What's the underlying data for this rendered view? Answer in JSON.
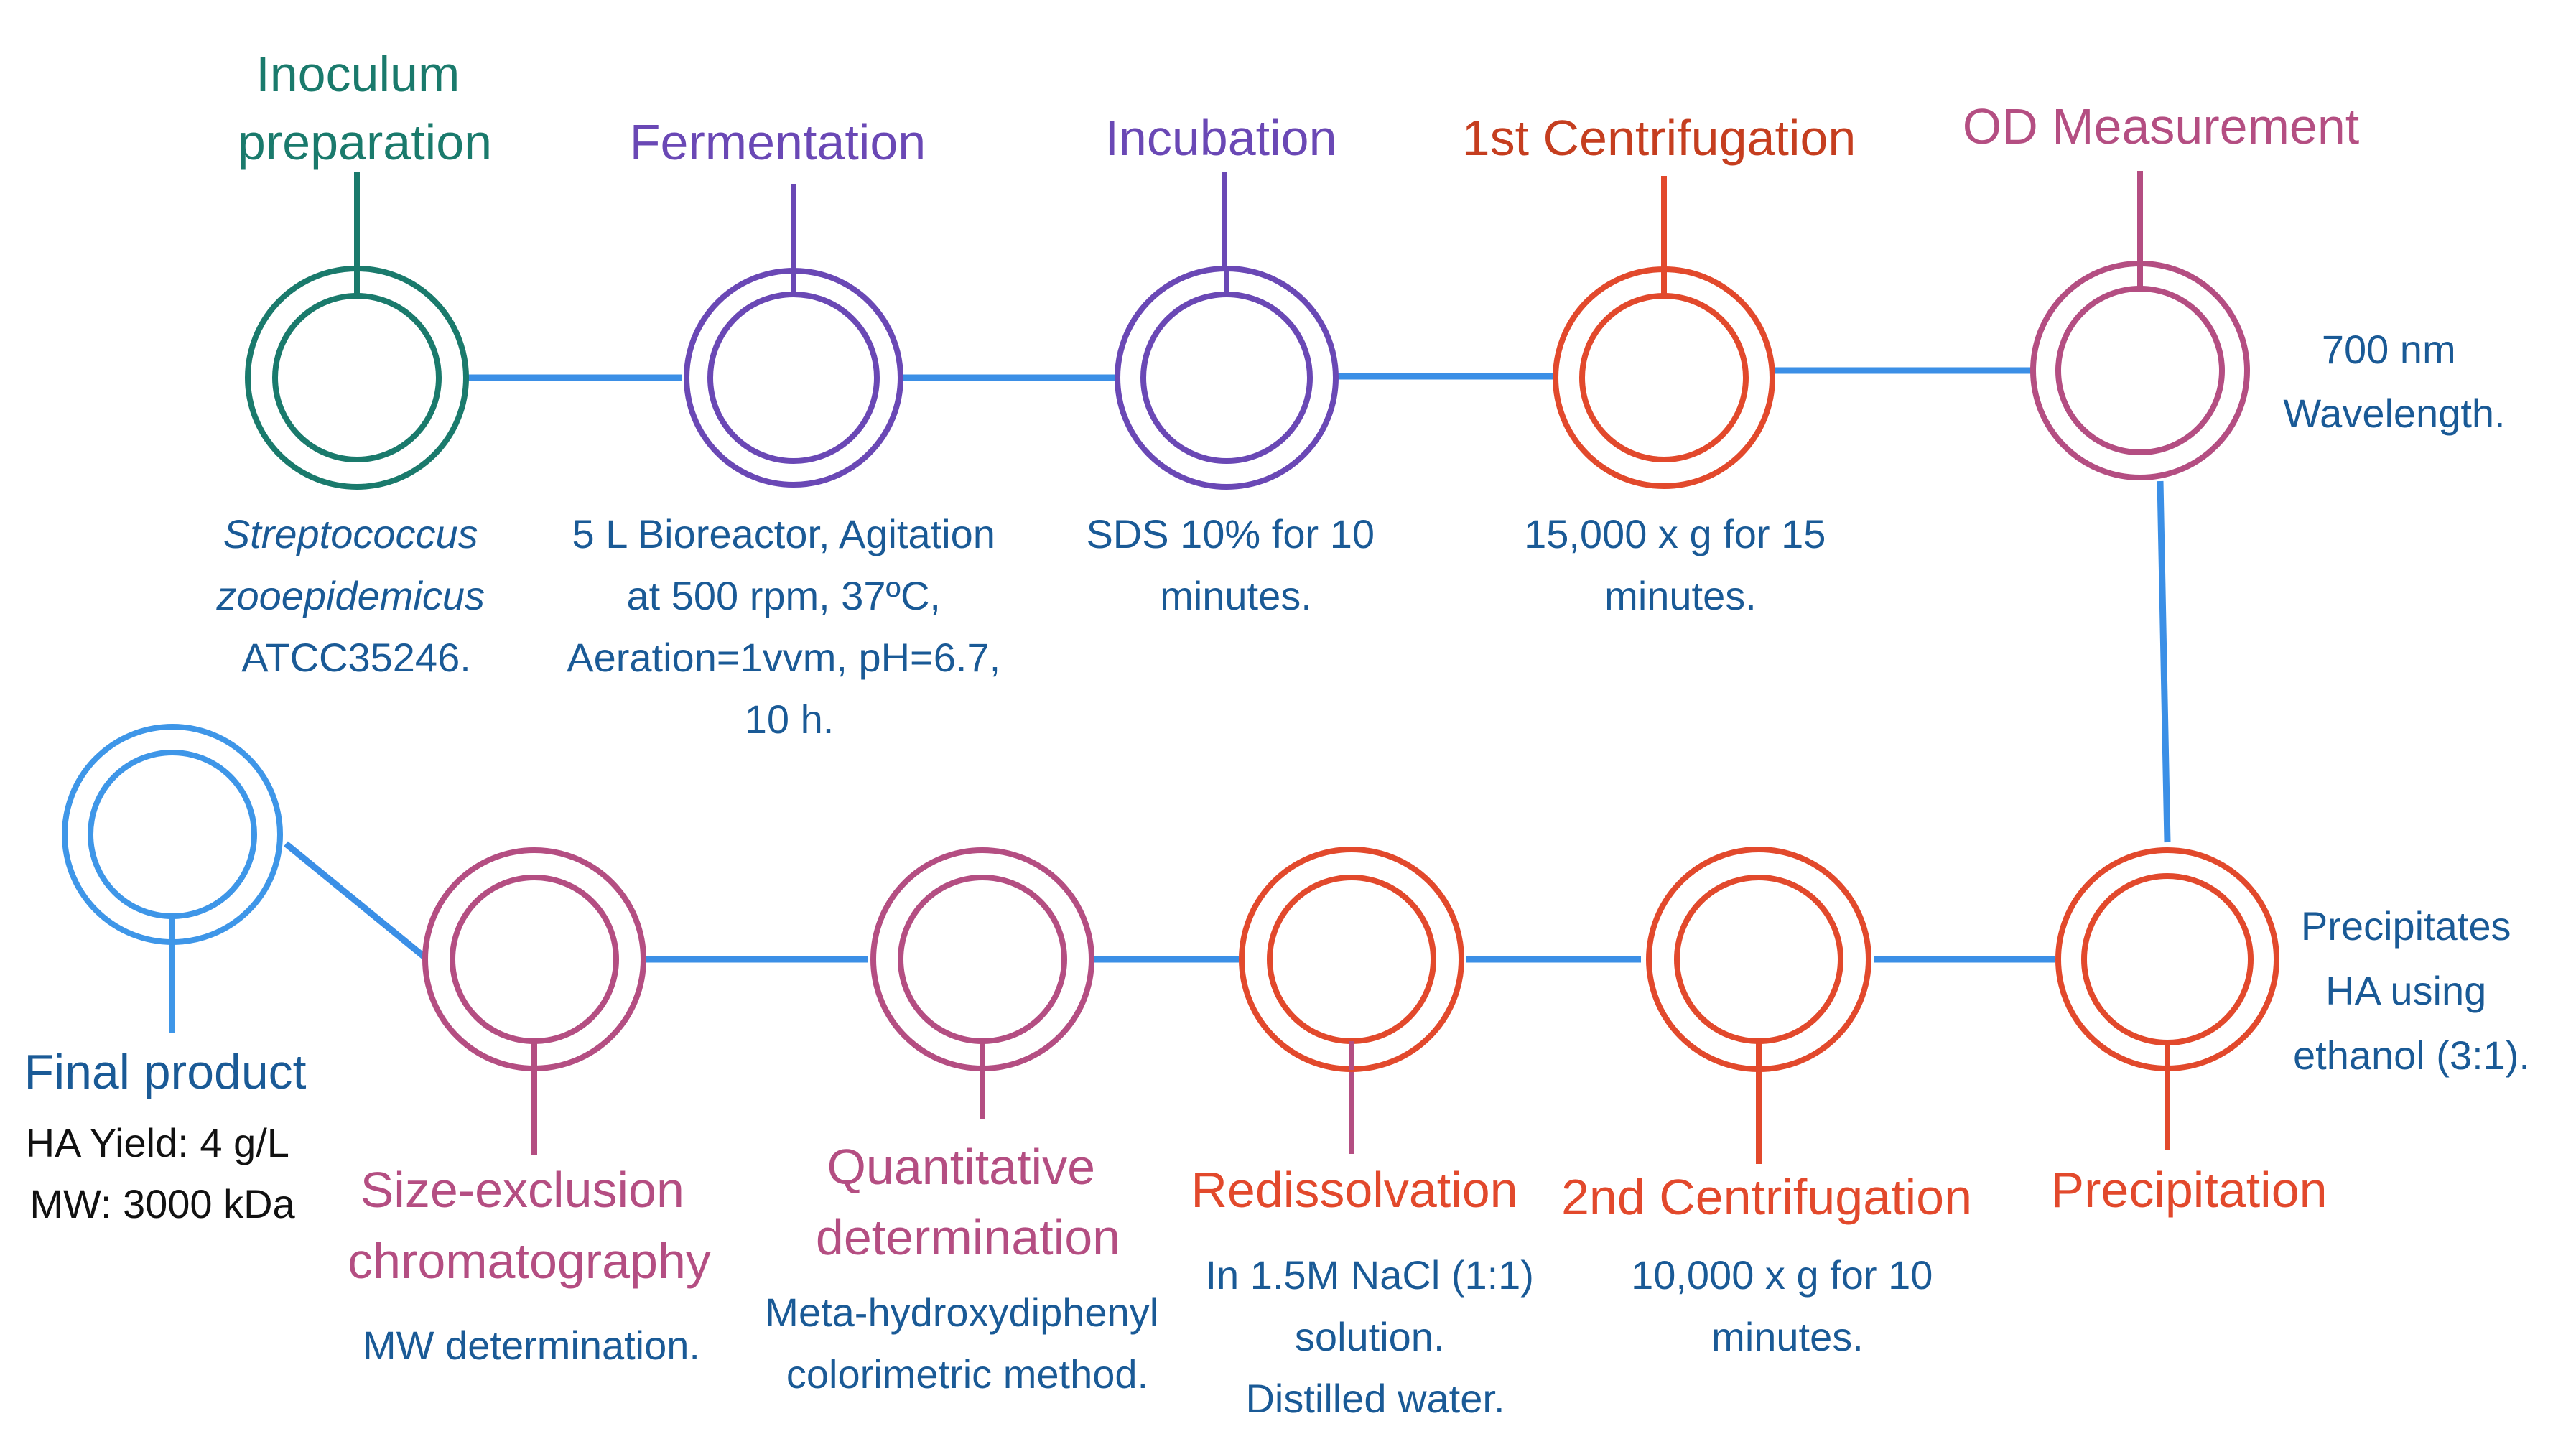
{
  "colors": {
    "line": "#3b8fe6",
    "body_text": "#1a5a96",
    "teal": "#1a7a6c",
    "purple": "#6a48b5",
    "red": "#e2492c",
    "magenta": "#b44e82",
    "blue": "#3e96e8",
    "black": "#111111"
  },
  "steps": {
    "inoculum": {
      "title": [
        "Inoculum",
        "preparation"
      ],
      "details": [
        "Streptococcus",
        "zooepidemicus",
        "ATCC35246."
      ]
    },
    "fermentation": {
      "title": [
        "Fermentation"
      ],
      "details": [
        "5 L Bioreactor,  Agitation",
        "at 500 rpm, 37ºC,",
        "Aeration=1vvm, pH=6.7,",
        "10 h."
      ]
    },
    "incubation": {
      "title": [
        "Incubation"
      ],
      "details": [
        "SDS 10% for 10",
        "minutes."
      ]
    },
    "centrifugation1": {
      "title": [
        "1st Centrifugation"
      ],
      "details": [
        "15,000 x g for 15",
        "minutes."
      ]
    },
    "od_measurement": {
      "title": [
        "OD Measurement"
      ],
      "details": [
        "700 nm",
        "Wavelength."
      ]
    },
    "precipitation": {
      "title": [
        "Precipitation"
      ],
      "details": [
        "Precipitates",
        "HA using",
        "ethanol (3:1)."
      ]
    },
    "centrifugation2": {
      "title": [
        "2nd Centrifugation"
      ],
      "details": [
        "10,000 x g for 10",
        "minutes."
      ]
    },
    "redissolvation": {
      "title": [
        "Redissolvation"
      ],
      "details": [
        "In 1.5M NaCl (1:1)",
        "solution.",
        "Distilled water."
      ]
    },
    "quantitative": {
      "title": [
        "Quantitative",
        "determination"
      ],
      "details": [
        "Meta-hydroxydiphenyl",
        "colorimetric method."
      ]
    },
    "size_exclusion": {
      "title": [
        "Size-exclusion",
        "chromatography"
      ],
      "details": [
        "MW determination."
      ]
    },
    "final": {
      "title": [
        "Final product"
      ],
      "details": [
        "HA Yield: 4 g/L",
        "MW: 3000 kDa"
      ]
    }
  }
}
